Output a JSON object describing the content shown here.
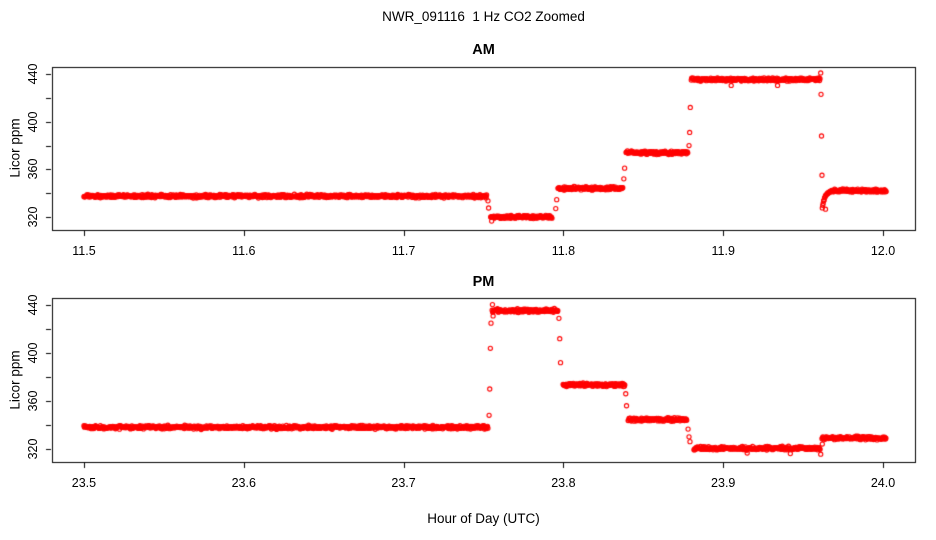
{
  "title": "NWR_091116  1 Hz CO2 Zoomed",
  "xlabel": "Hour of Day (UTC)",
  "ylabel": "Licor ppm",
  "colors": {
    "points": "#FF0000",
    "axis": "#000000",
    "background": "#FFFFFF"
  },
  "point_style": "open-circle",
  "chart_data": [
    {
      "type": "scatter",
      "title": "AM",
      "xlabel": "Hour of Day (UTC)",
      "ylabel": "Licor ppm",
      "xlim": [
        11.48,
        12.02
      ],
      "ylim": [
        309,
        446
      ],
      "xticks": [
        11.5,
        11.6,
        11.7,
        11.8,
        11.9,
        12.0
      ],
      "xtick_labels": [
        "11.5",
        "11.6",
        "11.7",
        "11.8",
        "11.9",
        "12.0"
      ],
      "yticks_major": [
        320,
        360,
        400,
        440
      ],
      "ytick_labels": [
        "320",
        "360",
        "400",
        "440"
      ],
      "yticks_minor": [
        340,
        380,
        420
      ],
      "grid": false,
      "sample_rate_hz": 1,
      "segments": [
        {
          "t0": 11.5,
          "t1": 11.7522,
          "level": 337.5
        },
        {
          "t0": 11.7545,
          "t1": 11.793,
          "level": 320.0
        },
        {
          "t0": 11.7966,
          "t1": 11.8373,
          "level": 344.0
        },
        {
          "t0": 11.8392,
          "t1": 11.878,
          "level": 374.0
        },
        {
          "t0": 11.88,
          "t1": 11.9606,
          "level": 435.5
        },
        {
          "t0": 11.962,
          "t1": 11.9672,
          "ramp_from": 327.5,
          "ramp_to": 342.0
        },
        {
          "t0": 11.9672,
          "t1": 12.002,
          "level": 342.0
        }
      ],
      "transition_points": [
        {
          "t": 11.7528,
          "y": 333.5
        },
        {
          "t": 11.7532,
          "y": 327.5
        },
        {
          "t": 11.7551,
          "y": 316.5
        },
        {
          "t": 11.7952,
          "y": 327.0
        },
        {
          "t": 11.7958,
          "y": 334.5
        },
        {
          "t": 11.8378,
          "y": 352.0
        },
        {
          "t": 11.8383,
          "y": 361.0
        },
        {
          "t": 11.8786,
          "y": 380.0
        },
        {
          "t": 11.879,
          "y": 391.0
        },
        {
          "t": 11.8794,
          "y": 412.0
        },
        {
          "t": 11.905,
          "y": 430.5
        },
        {
          "t": 11.934,
          "y": 430.5
        },
        {
          "t": 11.961,
          "y": 441.0
        },
        {
          "t": 11.9612,
          "y": 423.0
        },
        {
          "t": 11.9615,
          "y": 388.0
        },
        {
          "t": 11.9618,
          "y": 355.0
        },
        {
          "t": 11.964,
          "y": 326.5
        }
      ]
    },
    {
      "type": "scatter",
      "title": "PM",
      "xlabel": "Hour of Day (UTC)",
      "ylabel": "Licor ppm",
      "xlim": [
        23.48,
        24.02
      ],
      "ylim": [
        309,
        446
      ],
      "xticks": [
        23.5,
        23.6,
        23.7,
        23.8,
        23.9,
        24.0
      ],
      "xtick_labels": [
        "23.5",
        "23.6",
        "23.7",
        "23.8",
        "23.9",
        "24.0"
      ],
      "yticks_major": [
        320,
        360,
        400,
        440
      ],
      "ytick_labels": [
        "320",
        "360",
        "400",
        "440"
      ],
      "yticks_minor": [
        340,
        380,
        420
      ],
      "grid": false,
      "sample_rate_hz": 1,
      "segments": [
        {
          "t0": 23.5,
          "t1": 23.7529,
          "level": 338.0
        },
        {
          "t0": 23.7554,
          "t1": 23.7966,
          "level": 435.5
        },
        {
          "t0": 23.7998,
          "t1": 23.8386,
          "level": 373.5
        },
        {
          "t0": 23.8405,
          "t1": 23.8774,
          "level": 344.5
        },
        {
          "t0": 23.8817,
          "t1": 23.9606,
          "level": 320.5
        },
        {
          "t0": 23.9618,
          "t1": 24.002,
          "level": 329.0
        }
      ],
      "transition_points": [
        {
          "t": 23.7535,
          "y": 348.0
        },
        {
          "t": 23.7539,
          "y": 370.0
        },
        {
          "t": 23.7543,
          "y": 404.0
        },
        {
          "t": 23.7547,
          "y": 425.0
        },
        {
          "t": 23.7556,
          "y": 440.5
        },
        {
          "t": 23.756,
          "y": 431.0
        },
        {
          "t": 23.7972,
          "y": 429.0
        },
        {
          "t": 23.7977,
          "y": 412.0
        },
        {
          "t": 23.7982,
          "y": 392.0
        },
        {
          "t": 23.839,
          "y": 366.0
        },
        {
          "t": 23.8395,
          "y": 356.0
        },
        {
          "t": 23.878,
          "y": 336.5
        },
        {
          "t": 23.8786,
          "y": 330.0
        },
        {
          "t": 23.8792,
          "y": 326.0
        },
        {
          "t": 23.915,
          "y": 316.5
        },
        {
          "t": 23.942,
          "y": 316.0
        },
        {
          "t": 23.961,
          "y": 315.5
        },
        {
          "t": 23.962,
          "y": 324.0
        }
      ]
    }
  ]
}
